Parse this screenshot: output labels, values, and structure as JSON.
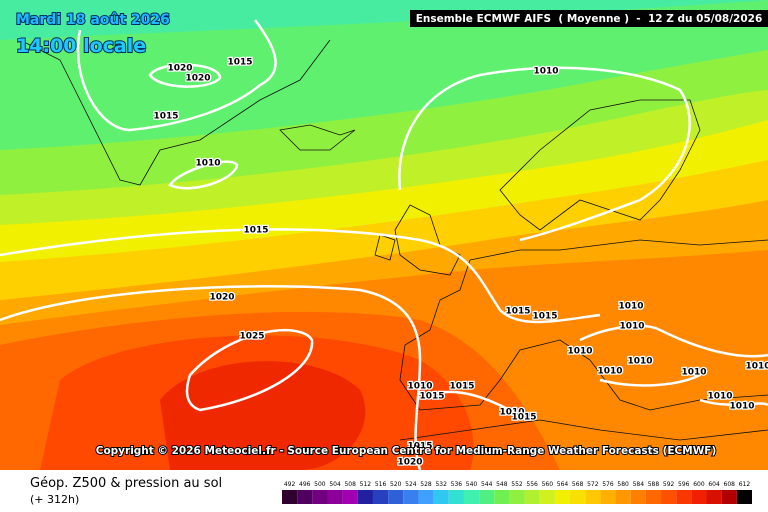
{
  "header": {
    "date": "Mardi 18 août 2026",
    "time": "14:00 locale",
    "model": "Ensemble ECMWF AIFS  ( Moyenne )  -  12 Z du 05/08/2026"
  },
  "copyright": "Copyright © 2026 Meteociel.fr - Source European Centre for Medium-Range Weather Forecasts (ECMWF)",
  "footer": {
    "title": "Géop. Z500 & pression au sol",
    "lead": "(+ 312h)"
  },
  "legend": {
    "labels": [
      492,
      496,
      500,
      504,
      508,
      512,
      516,
      520,
      524,
      528,
      532,
      536,
      540,
      544,
      548,
      552,
      556,
      560,
      564,
      568,
      572,
      576,
      580,
      584,
      588,
      592,
      596,
      600,
      604,
      608,
      612
    ],
    "colors": [
      "#300030",
      "#500060",
      "#700080",
      "#8a0098",
      "#a000b0",
      "#2020a0",
      "#2840c0",
      "#3060d8",
      "#3880f0",
      "#40a0ff",
      "#30c8f0",
      "#30e0d0",
      "#40f0b0",
      "#50f080",
      "#70f050",
      "#90f040",
      "#b0f030",
      "#d0f020",
      "#f0f000",
      "#f8e000",
      "#ffc800",
      "#ffb000",
      "#ff9800",
      "#ff8000",
      "#ff6800",
      "#ff5000",
      "#f83800",
      "#f02000",
      "#d81000",
      "#b00000",
      "#000000"
    ]
  },
  "isobar_labels": [
    1020,
    1020,
    1015,
    1015,
    1010,
    1010,
    1015,
    1020,
    1025,
    1015,
    1015,
    1010,
    1010,
    1010,
    1010,
    1010,
    1010,
    1010,
    1015,
    1015,
    1010,
    1010,
    1015,
    1010,
    1010,
    1015,
    1020
  ]
}
